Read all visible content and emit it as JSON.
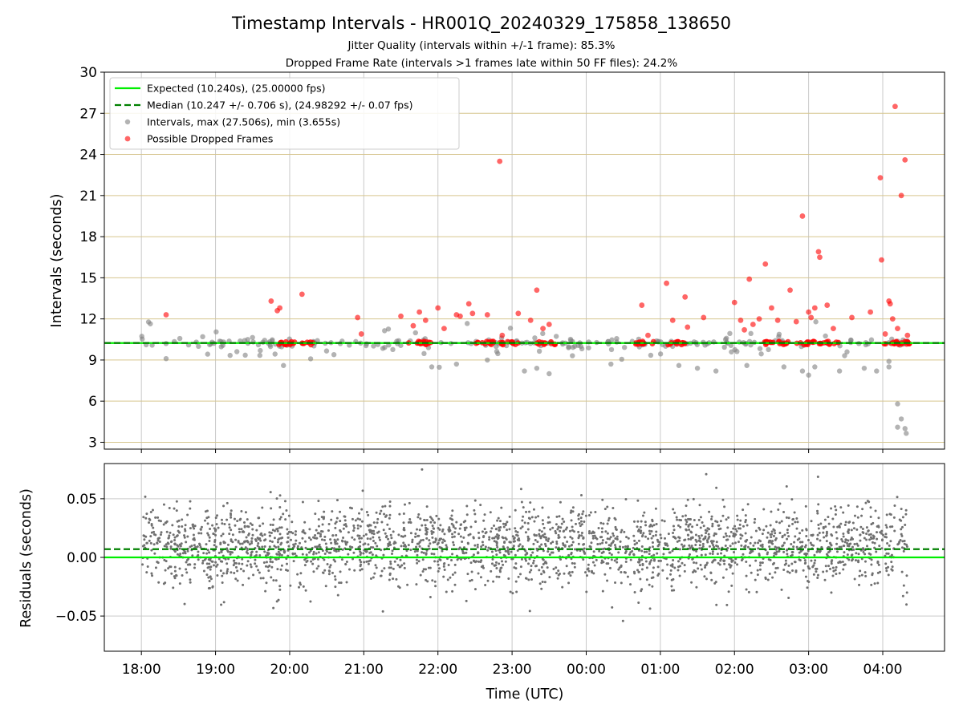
{
  "figure": {
    "title": "Timestamp Intervals - HR001Q_20240329_175858_138650",
    "subtitle_1": "Jitter Quality (intervals within +/-1 frame): 85.3%",
    "subtitle_2": "Dropped Frame Rate (intervals >1 frames late within 50 FF files): 24.2%",
    "xlabel": "Time (UTC)"
  },
  "chart_data": [
    {
      "type": "scatter",
      "panel": "top",
      "ylabel": "Intervals (seconds)",
      "x_axis": {
        "start": "2024-03-29 17:30",
        "end": "2024-03-30 04:50",
        "ticks": [
          "18:00",
          "19:00",
          "20:00",
          "21:00",
          "22:00",
          "23:00",
          "00:00",
          "01:00",
          "02:00",
          "03:00",
          "04:00"
        ]
      },
      "ylim": [
        2.5,
        30
      ],
      "y_ticks": [
        3,
        6,
        9,
        12,
        15,
        18,
        21,
        24,
        27,
        30
      ],
      "grid": {
        "horizontal": true,
        "vertical": true,
        "horizontal_color": "#d6c58e",
        "vertical_color": "#c9c9c9"
      },
      "legend": {
        "placement": "top-left",
        "entries": [
          "Expected (10.240s), (25.00000 fps)",
          "Median (10.247 +/- 0.706 s), (24.98292 +/- 0.07 fps)",
          "Intervals, max (27.506s), min (3.655s)",
          "Possible Dropped Frames"
        ]
      },
      "colors": {
        "expected": "#00ee00",
        "median": "#008000",
        "intervals": "#808080",
        "dropped": "#ff0000"
      },
      "lines": {
        "expected": 10.24,
        "median": 10.247
      },
      "stats": {
        "max": 27.506,
        "min": 3.655,
        "count_approx": 3500
      },
      "series": [
        {
          "role": "intervals",
          "generated_distribution": {
            "center": 10.24,
            "spread": 0.6,
            "seed": 7,
            "count": 230,
            "clip": [
              8.0,
              12.0
            ]
          },
          "points": [
            [
              "18:20",
              9.1
            ],
            [
              "19:55",
              8.6
            ],
            [
              "21:55",
              8.5
            ],
            [
              "22:15",
              8.7
            ],
            [
              "22:40",
              9.0
            ],
            [
              "23:10",
              8.2
            ],
            [
              "23:20",
              8.4
            ],
            [
              "23:30",
              8.0
            ],
            [
              "00:20",
              8.7
            ],
            [
              "01:15",
              8.6
            ],
            [
              "01:30",
              8.4
            ],
            [
              "01:45",
              8.2
            ],
            [
              "02:10",
              8.6
            ],
            [
              "02:40",
              8.5
            ],
            [
              "02:55",
              8.2
            ],
            [
              "03:00",
              7.9
            ],
            [
              "03:05",
              8.5
            ],
            [
              "03:25",
              8.2
            ],
            [
              "03:45",
              8.4
            ],
            [
              "03:55",
              8.2
            ],
            [
              "04:05",
              8.5
            ],
            [
              "04:12",
              5.8
            ],
            [
              "04:12",
              4.1
            ],
            [
              "04:15",
              4.7
            ],
            [
              "04:18",
              4.0
            ],
            [
              "04:19",
              3.65
            ],
            [
              "04:05",
              8.9
            ]
          ]
        },
        {
          "role": "dropped",
          "dense_clusters": [
            [
              "19:48",
              "20:05"
            ],
            [
              "20:10",
              "20:20"
            ],
            [
              "21:35",
              "21:55"
            ],
            [
              "22:30",
              "22:45"
            ],
            [
              "22:50",
              "23:05"
            ],
            [
              "23:20",
              "23:35"
            ],
            [
              "00:40",
              "00:55"
            ],
            [
              "01:05",
              "01:20"
            ],
            [
              "02:20",
              "02:45"
            ],
            [
              "02:50",
              "03:05"
            ],
            [
              "03:08",
              "03:25"
            ],
            [
              "04:00",
              "04:25"
            ]
          ],
          "points": [
            [
              "18:20",
              12.3
            ],
            [
              "19:45",
              13.3
            ],
            [
              "19:50",
              12.6
            ],
            [
              "19:52",
              12.8
            ],
            [
              "20:10",
              13.8
            ],
            [
              "20:55",
              12.1
            ],
            [
              "20:58",
              10.9
            ],
            [
              "21:30",
              12.2
            ],
            [
              "21:40",
              11.5
            ],
            [
              "21:45",
              12.5
            ],
            [
              "21:50",
              11.9
            ],
            [
              "22:00",
              12.8
            ],
            [
              "22:05",
              11.3
            ],
            [
              "22:15",
              12.3
            ],
            [
              "22:18",
              12.2
            ],
            [
              "22:25",
              13.1
            ],
            [
              "22:28",
              12.4
            ],
            [
              "22:40",
              12.3
            ],
            [
              "22:50",
              23.5
            ],
            [
              "22:52",
              10.8
            ],
            [
              "23:05",
              12.4
            ],
            [
              "23:15",
              11.9
            ],
            [
              "23:20",
              14.1
            ],
            [
              "23:25",
              11.3
            ],
            [
              "23:30",
              11.6
            ],
            [
              "00:45",
              13.0
            ],
            [
              "00:50",
              10.8
            ],
            [
              "01:05",
              14.6
            ],
            [
              "01:10",
              11.9
            ],
            [
              "01:20",
              13.6
            ],
            [
              "01:22",
              11.4
            ],
            [
              "01:35",
              12.1
            ],
            [
              "02:00",
              13.2
            ],
            [
              "02:05",
              11.9
            ],
            [
              "02:08",
              11.2
            ],
            [
              "02:12",
              14.9
            ],
            [
              "02:15",
              11.6
            ],
            [
              "02:20",
              12.0
            ],
            [
              "02:25",
              16.0
            ],
            [
              "02:30",
              12.8
            ],
            [
              "02:35",
              11.9
            ],
            [
              "02:45",
              14.1
            ],
            [
              "02:50",
              11.8
            ],
            [
              "02:55",
              19.5
            ],
            [
              "03:00",
              12.5
            ],
            [
              "03:02",
              12.1
            ],
            [
              "03:05",
              12.8
            ],
            [
              "03:08",
              16.9
            ],
            [
              "03:09",
              16.5
            ],
            [
              "03:15",
              13.0
            ],
            [
              "03:20",
              11.3
            ],
            [
              "03:35",
              12.1
            ],
            [
              "03:50",
              12.5
            ],
            [
              "03:58",
              22.3
            ],
            [
              "03:59",
              16.3
            ],
            [
              "04:02",
              10.9
            ],
            [
              "04:05",
              13.3
            ],
            [
              "04:06",
              13.1
            ],
            [
              "04:08",
              12.0
            ],
            [
              "04:10",
              27.5
            ],
            [
              "04:12",
              11.3
            ],
            [
              "04:15",
              21.0
            ],
            [
              "04:18",
              23.6
            ],
            [
              "04:20",
              10.8
            ]
          ]
        }
      ]
    },
    {
      "type": "scatter",
      "panel": "bottom",
      "ylabel": "Residuals (seconds)",
      "ylim": [
        -0.08,
        0.08
      ],
      "y_ticks": [
        0.05,
        0.0,
        -0.05
      ],
      "y_tick_labels": [
        "0.05",
        "0.00",
        "−0.05"
      ],
      "grid": {
        "horizontal": true,
        "vertical": true,
        "color": "#c9c9c9"
      },
      "colors": {
        "points": "#707070",
        "expected": "#00ee00",
        "median": "#008000"
      },
      "lines": {
        "expected": 0.0,
        "median": 0.007
      },
      "series": [
        {
          "role": "residuals",
          "x_range": [
            "18:00",
            "04:20"
          ],
          "generated_distribution": {
            "center": 0.01,
            "spread": 0.017,
            "seed": 11,
            "count": 2600,
            "clip": [
              -0.075,
              0.075
            ]
          }
        }
      ]
    }
  ]
}
